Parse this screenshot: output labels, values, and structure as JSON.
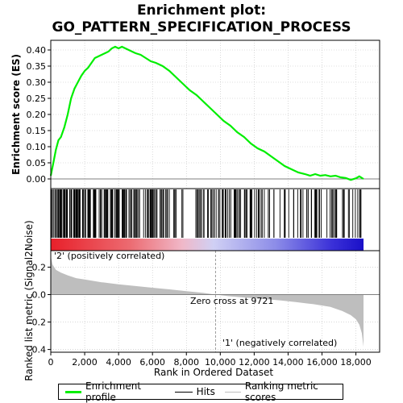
{
  "chart_data": {
    "type": "line",
    "title_line1": "Enrichment plot:",
    "title_line2": "GO_PATTERN_SPECIFICATION_PROCESS",
    "xlabel": "Rank in Ordered Dataset",
    "ylabel_top": "Enrichment score (ES)",
    "ylabel_bottom": "Ranked list metric (Signal2Noise)",
    "xlim": [
      0,
      19400
    ],
    "x_ticks": [
      0,
      2000,
      4000,
      6000,
      8000,
      10000,
      12000,
      14000,
      16000,
      18000
    ],
    "x_tick_labels": [
      "0",
      "2,000",
      "4,000",
      "6,000",
      "8,000",
      "10,000",
      "12,000",
      "14,000",
      "16,000",
      "18,000"
    ],
    "es_ylim": [
      -0.03,
      0.43
    ],
    "es_ticks": [
      0.0,
      0.05,
      0.1,
      0.15,
      0.2,
      0.25,
      0.3,
      0.35,
      0.4
    ],
    "es_tick_labels": [
      "0.00",
      "0.05",
      "0.10",
      "0.15",
      "0.20",
      "0.25",
      "0.30",
      "0.35",
      "0.40"
    ],
    "metric_ylim": [
      -0.42,
      0.32
    ],
    "metric_ticks": [
      -0.4,
      -0.2,
      0.0,
      0.2
    ],
    "metric_tick_labels": [
      "-0.4",
      "-0.2",
      "0.0",
      "0.2"
    ],
    "n_genes": 18450,
    "zero_cross": 9721,
    "series": [
      {
        "name": "Enrichment profile",
        "color": "#00ee00",
        "x": [
          0,
          150,
          300,
          450,
          600,
          800,
          1000,
          1200,
          1400,
          1600,
          1800,
          2000,
          2200,
          2400,
          2600,
          2800,
          3000,
          3200,
          3400,
          3600,
          3800,
          4000,
          4200,
          4400,
          4600,
          4800,
          5000,
          5300,
          5600,
          5900,
          6200,
          6600,
          7000,
          7400,
          7800,
          8200,
          8600,
          9000,
          9400,
          9800,
          10200,
          10600,
          11000,
          11400,
          11800,
          12200,
          12600,
          13000,
          13400,
          13800,
          14200,
          14600,
          15000,
          15300,
          15600,
          15900,
          16200,
          16500,
          16800,
          17100,
          17400,
          17700,
          18000,
          18200,
          18450
        ],
        "y": [
          0.01,
          0.05,
          0.09,
          0.12,
          0.13,
          0.16,
          0.2,
          0.25,
          0.28,
          0.3,
          0.32,
          0.335,
          0.345,
          0.36,
          0.375,
          0.38,
          0.385,
          0.39,
          0.395,
          0.405,
          0.41,
          0.405,
          0.41,
          0.405,
          0.4,
          0.395,
          0.39,
          0.385,
          0.375,
          0.365,
          0.36,
          0.35,
          0.335,
          0.315,
          0.295,
          0.275,
          0.26,
          0.24,
          0.22,
          0.2,
          0.18,
          0.165,
          0.145,
          0.13,
          0.11,
          0.095,
          0.085,
          0.07,
          0.055,
          0.04,
          0.03,
          0.02,
          0.015,
          0.01,
          0.015,
          0.01,
          0.012,
          0.008,
          0.01,
          0.005,
          0.003,
          -0.003,
          0.002,
          0.008,
          0.0
        ]
      },
      {
        "name": "Ranking metric scores",
        "color": "#bebebe",
        "x": [
          0,
          100,
          300,
          600,
          1000,
          1500,
          2000,
          3000,
          4000,
          5000,
          6000,
          7000,
          8000,
          9000,
          9721,
          10500,
          11500,
          12500,
          13500,
          14500,
          15500,
          16500,
          17200,
          17700,
          18000,
          18200,
          18350,
          18450
        ],
        "y": [
          0.28,
          0.22,
          0.18,
          0.16,
          0.14,
          0.12,
          0.11,
          0.09,
          0.075,
          0.062,
          0.05,
          0.038,
          0.025,
          0.012,
          0.0,
          -0.012,
          -0.022,
          -0.032,
          -0.042,
          -0.055,
          -0.07,
          -0.09,
          -0.12,
          -0.15,
          -0.18,
          -0.22,
          -0.28,
          -0.38
        ]
      }
    ],
    "hits": {
      "name": "Hits",
      "color": "#000000",
      "dense_ranges": [
        [
          20,
          3400
        ],
        [
          3500,
          4100
        ],
        [
          4200,
          4700
        ]
      ],
      "medium_ranges": [
        [
          4700,
          7600
        ]
      ],
      "sparse_ranges": [
        [
          7600,
          10200
        ],
        [
          10200,
          14200
        ],
        [
          14200,
          18450
        ]
      ]
    },
    "annotations": {
      "zero_cross_label": "Zero cross at 9721",
      "positive_label": "'2' (positively correlated)",
      "negative_label": "'1' (negatively correlated)"
    },
    "colors": {
      "positive": "#e8202a",
      "negative": "#1a10c8",
      "positive_label": "#cc0000",
      "negative_label": "#0000cc",
      "grid": "#c0c0c0"
    },
    "legend": {
      "placement": "bottom",
      "items": [
        "Enrichment profile",
        "Hits",
        "Ranking metric scores"
      ]
    }
  }
}
